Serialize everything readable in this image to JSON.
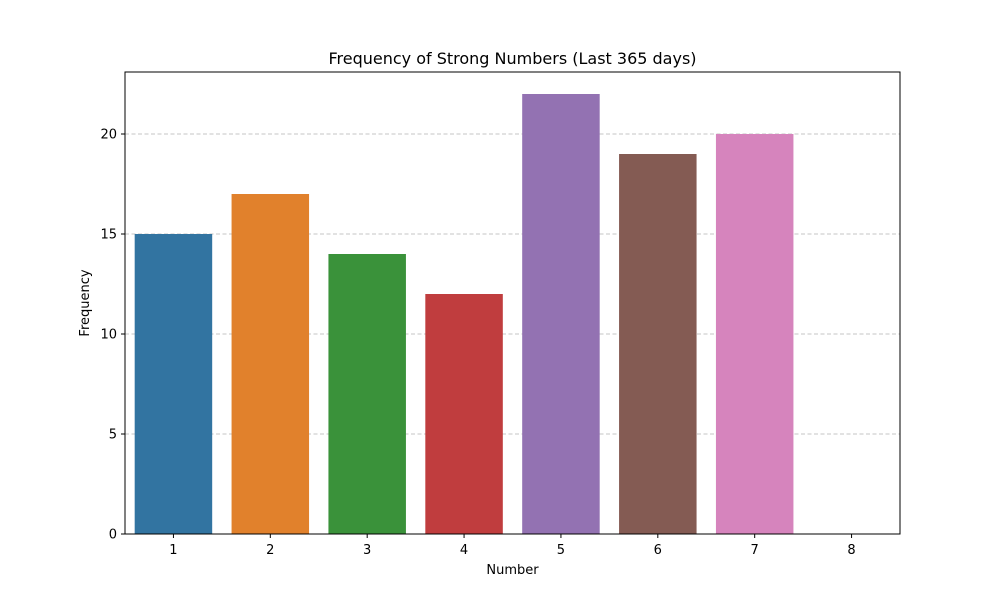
{
  "chart_data": {
    "type": "bar",
    "title": "Frequency of Strong Numbers (Last 365 days)",
    "xlabel": "Number",
    "ylabel": "Frequency",
    "categories": [
      "1",
      "2",
      "3",
      "4",
      "5",
      "6",
      "7",
      "8"
    ],
    "values": [
      15,
      17,
      14,
      12,
      22,
      19,
      20,
      0
    ],
    "colors": [
      "#3274a1",
      "#e1812c",
      "#3a923a",
      "#c03d3e",
      "#9372b2",
      "#845b53",
      "#d684bd",
      "#7f7f7f"
    ],
    "ylim": [
      0,
      23.1
    ],
    "yticks": [
      0,
      5,
      10,
      15,
      20
    ],
    "ytick_labels": [
      "0",
      "5",
      "10",
      "15",
      "20"
    ],
    "grid": "y-dashed",
    "legend": "none"
  }
}
